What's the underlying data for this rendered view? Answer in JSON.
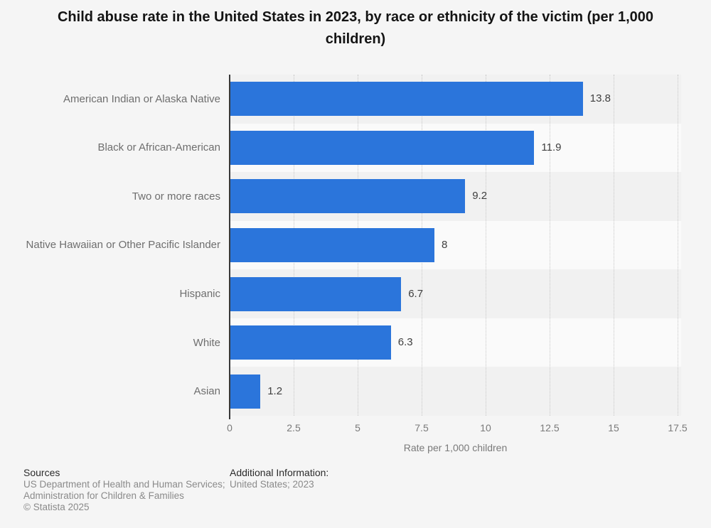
{
  "title": "Child abuse rate in the United States in 2023, by race or ethnicity of the victim (per 1,000 children)",
  "chart_data": {
    "type": "bar",
    "orientation": "horizontal",
    "categories": [
      "American Indian or Alaska Native",
      "Black or African-American",
      "Two or more races",
      "Native Hawaiian or Other Pacific Islander",
      "Hispanic",
      "White",
      "Asian"
    ],
    "values": [
      13.8,
      11.9,
      9.2,
      8,
      6.7,
      6.3,
      1.2
    ],
    "value_labels": [
      "13.8",
      "11.9",
      "9.2",
      "8",
      "6.7",
      "6.3",
      "1.2"
    ],
    "xlabel": "Rate per 1,000 children",
    "ylabel": "",
    "xlim": [
      0,
      17.5
    ],
    "xticks": [
      0,
      2.5,
      5,
      7.5,
      10,
      12.5,
      15,
      17.5
    ],
    "xtick_labels": [
      "0",
      "2.5",
      "5",
      "7.5",
      "10",
      "12.5",
      "15",
      "17.5"
    ],
    "grid": "vertical dotted gridlines at each x tick",
    "legend": "none",
    "row_banding": "alternating horizontal bands behind bars"
  },
  "colors": {
    "page_background": "#f5f5f5",
    "bar": "#2b75db",
    "row_band_dark": "#f1f1f1",
    "row_band_light": "#fafafa",
    "gridline": "#c7c7c7",
    "axis_line": "#383838",
    "title_text": "#141414",
    "category_text": "#6e6e6e",
    "value_text": "#3f3f3f",
    "tick_text": "#7a7a7a"
  },
  "footer": {
    "sources_heading": "Sources",
    "sources_lines": [
      "US Department of Health and Human Services;",
      "Administration for Children & Families"
    ],
    "copyright": "© Statista 2025",
    "additional_heading": "Additional Information:",
    "additional_text": "United States; 2023"
  }
}
